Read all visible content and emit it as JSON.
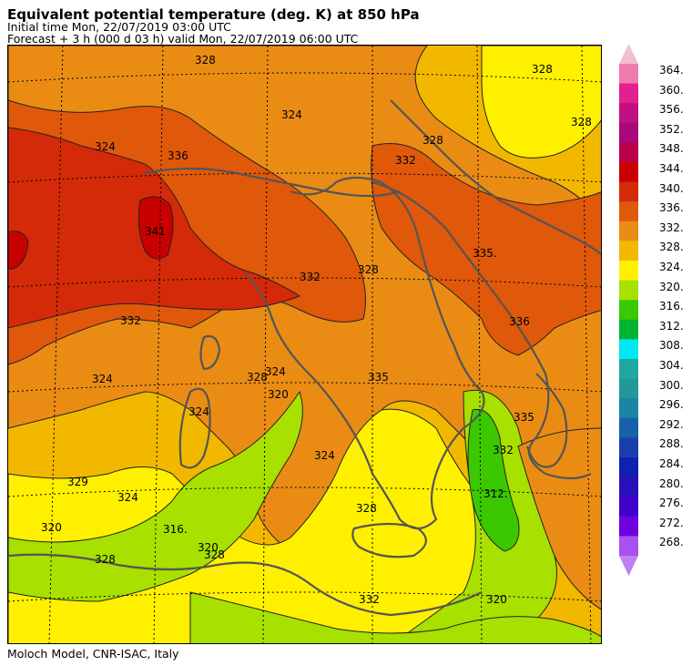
{
  "header": {
    "title": "Equivalent potential temperature (deg. K) at 850 hPa",
    "init": "Initial time  Mon, 22/07/2019  03:00 UTC",
    "forecast": "Forecast  +   3 h  (000 d 03 h)  valid Mon, 22/07/2019 06:00 UTC"
  },
  "footer": {
    "credit": "Moloch Model, CNR-ISAC, Italy"
  },
  "legend": {
    "levels": [
      "364.",
      "360.",
      "356.",
      "352.",
      "348.",
      "344.",
      "340.",
      "336.",
      "332.",
      "328.",
      "324.",
      "320.",
      "316.",
      "312.",
      "308.",
      "304.",
      "300.",
      "296.",
      "292.",
      "288.",
      "284.",
      "280.",
      "276.",
      "272.",
      "268."
    ],
    "colors": [
      "#f07cae",
      "#e2208e",
      "#c01080",
      "#a8087a",
      "#b80048",
      "#c80000",
      "#d42a0a",
      "#e0580a",
      "#ea8c14",
      "#f2b800",
      "#fff000",
      "#a8e000",
      "#3cc800",
      "#00b430",
      "#00e8f0",
      "#20a8a0",
      "#20989c",
      "#1c84a4",
      "#1860a8",
      "#1840ac",
      "#1020b0",
      "#2810b8",
      "#4000c8",
      "#7000e0",
      "#a850f0"
    ],
    "top_cap_color": "#f0c0d0",
    "bottom_cap_color": "#c080f0"
  },
  "map": {
    "contour_labels": [
      "328",
      "328",
      "324",
      "324",
      "328",
      "328",
      "332",
      "336",
      "341",
      "335.",
      "332",
      "335",
      "336",
      "335",
      "328",
      "332",
      "324",
      "324",
      "328",
      "324",
      "332",
      "328",
      "320",
      "324",
      "329",
      "324",
      "316.",
      "320",
      "328",
      "312.",
      "320",
      "320",
      "328",
      "332"
    ]
  }
}
